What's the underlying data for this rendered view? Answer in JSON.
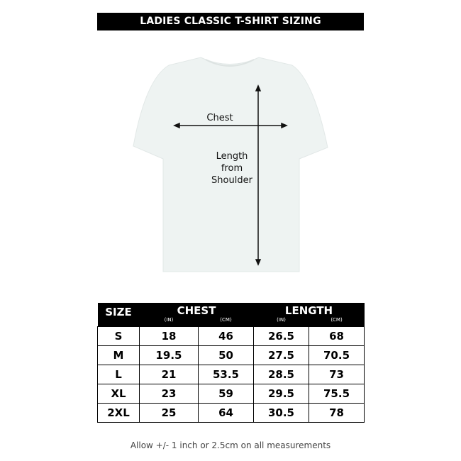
{
  "title": "LADIES CLASSIC T-SHIRT SIZING",
  "diagram": {
    "chest_label": "Chest",
    "length_label": [
      "Length",
      "from",
      "Shoulder"
    ],
    "shirt_color": "#eef3f2"
  },
  "table": {
    "headers": {
      "size": "SIZE",
      "chest": "CHEST",
      "length": "LENGTH"
    },
    "units": [
      "(IN)",
      "(CM)",
      "(IN)",
      "(CM)"
    ],
    "rows": [
      [
        "S",
        "18",
        "46",
        "26.5",
        "68"
      ],
      [
        "M",
        "19.5",
        "50",
        "27.5",
        "70.5"
      ],
      [
        "L",
        "21",
        "53.5",
        "28.5",
        "73"
      ],
      [
        "XL",
        "23",
        "59",
        "29.5",
        "75.5"
      ],
      [
        "2XL",
        "25",
        "64",
        "30.5",
        "78"
      ]
    ]
  },
  "note": "Allow +/- 1 inch or 2.5cm on all measurements"
}
